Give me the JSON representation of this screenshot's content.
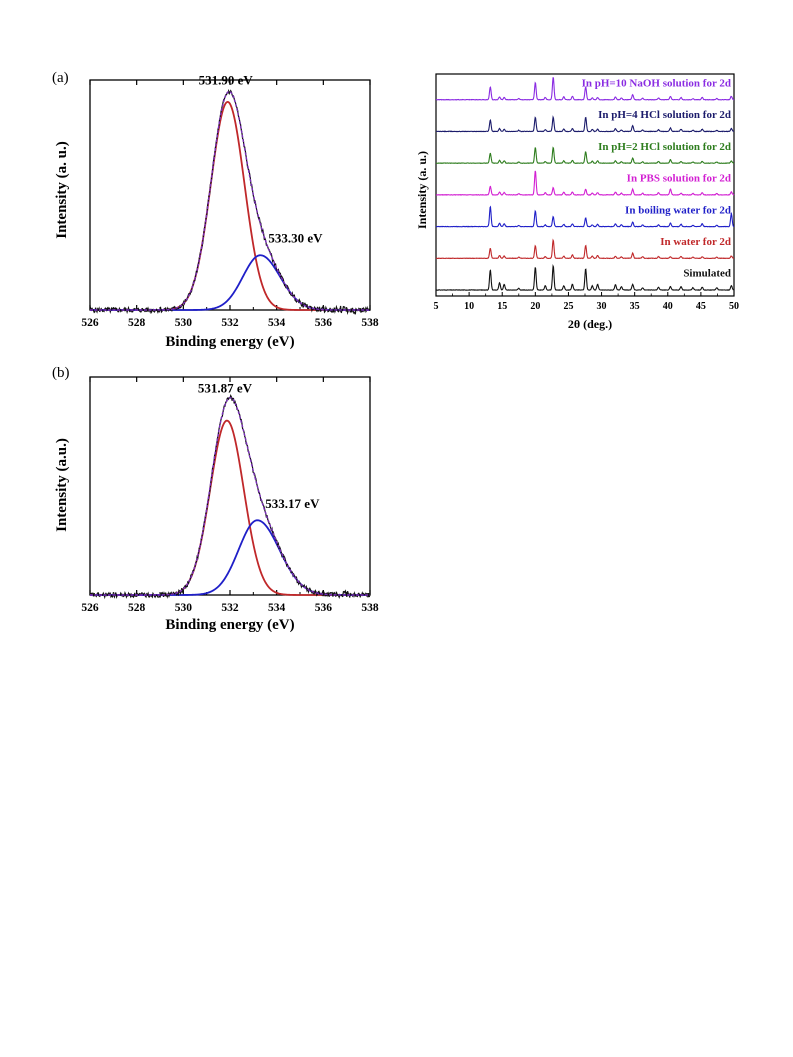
{
  "chart_data": [
    {
      "panel": "(a)",
      "type": "line",
      "xlabel": "Binding energy (eV)",
      "ylabel": "Intensity (a. u.)",
      "xlim": [
        526,
        538
      ],
      "ylim": [
        0,
        1.05
      ],
      "xticks": [
        526,
        528,
        530,
        532,
        534,
        536,
        538
      ],
      "annotations": [
        {
          "text": "531.90 eV",
          "x": 531.9,
          "y": 1.0
        },
        {
          "text": "533.30 eV",
          "x": 533.3,
          "y": 0.25
        }
      ],
      "peaks": [
        {
          "center": 531.9,
          "height": 0.95,
          "sigma_left": 0.72,
          "sigma_right": 0.72,
          "color": "#c0282a"
        },
        {
          "center": 533.3,
          "height": 0.25,
          "sigma_left": 0.75,
          "sigma_right": 0.85,
          "color": "#1f1fc8"
        }
      ],
      "baseline": 0.0,
      "envelope_color": "#7a2fb8",
      "raw_color": "#111111"
    },
    {
      "panel": "(b)",
      "type": "line",
      "xlabel": "Binding energy (eV)",
      "ylabel": "Intensity (a.u.)",
      "xlim": [
        526,
        538
      ],
      "ylim": [
        0,
        1.05
      ],
      "xticks": [
        526,
        528,
        530,
        532,
        534,
        536,
        538
      ],
      "annotations": [
        {
          "text": "531.87 eV",
          "x": 531.87,
          "y": 1.0
        },
        {
          "text": "533.17 eV",
          "x": 533.17,
          "y": 0.37
        }
      ],
      "peaks": [
        {
          "center": 531.87,
          "height": 0.84,
          "sigma_left": 0.72,
          "sigma_right": 0.72,
          "color": "#c0282a"
        },
        {
          "center": 533.17,
          "height": 0.36,
          "sigma_left": 0.8,
          "sigma_right": 0.95,
          "color": "#1f1fc8"
        }
      ],
      "baseline": 0.0,
      "envelope_color": "#7a2fb8",
      "raw_color": "#111111"
    },
    {
      "panel": "xrd",
      "type": "line",
      "xlabel": "2θ (deg.)",
      "ylabel": "Intensity (a. u.)",
      "xlim": [
        5,
        50
      ],
      "xticks": [
        5,
        10,
        15,
        20,
        25,
        30,
        35,
        40,
        45,
        50
      ],
      "peak_positions": [
        13.2,
        14.6,
        15.3,
        17.5,
        20.0,
        21.5,
        22.7,
        24.3,
        25.6,
        27.6,
        28.6,
        29.4,
        32.1,
        33.0,
        34.7,
        36.2,
        38.6,
        40.4,
        42.0,
        43.8,
        45.2,
        47.4,
        49.6
      ],
      "series": [
        {
          "name": "Simulated",
          "color": "#111111",
          "heights": [
            0.7,
            0.25,
            0.2,
            0.06,
            0.8,
            0.15,
            0.85,
            0.15,
            0.2,
            0.75,
            0.15,
            0.2,
            0.18,
            0.12,
            0.2,
            0.08,
            0.1,
            0.12,
            0.12,
            0.08,
            0.1,
            0.08,
            0.15
          ]
        },
        {
          "name": "In water for 2d",
          "color": "#c0282a",
          "heights": [
            0.35,
            0.1,
            0.08,
            0.04,
            0.45,
            0.06,
            0.65,
            0.08,
            0.12,
            0.45,
            0.08,
            0.1,
            0.07,
            0.05,
            0.18,
            0.06,
            0.06,
            0.05,
            0.07,
            0.04,
            0.05,
            0.04,
            0.08
          ]
        },
        {
          "name": "In boiling water for 2d",
          "color": "#1f1fc8",
          "heights": [
            0.7,
            0.12,
            0.1,
            0.04,
            0.55,
            0.06,
            0.35,
            0.08,
            0.1,
            0.3,
            0.06,
            0.08,
            0.1,
            0.06,
            0.16,
            0.06,
            0.06,
            0.12,
            0.08,
            0.05,
            0.1,
            0.05,
            0.45
          ]
        },
        {
          "name": "In PBS solution for 2d",
          "color": "#d21fd2",
          "heights": [
            0.3,
            0.1,
            0.08,
            0.04,
            0.85,
            0.08,
            0.25,
            0.1,
            0.1,
            0.2,
            0.07,
            0.08,
            0.1,
            0.06,
            0.2,
            0.06,
            0.08,
            0.2,
            0.06,
            0.05,
            0.08,
            0.05,
            0.1
          ]
        },
        {
          "name": "In pH=2 HCl solution for 2d",
          "color": "#2e7d1e",
          "heights": [
            0.35,
            0.1,
            0.08,
            0.04,
            0.55,
            0.06,
            0.55,
            0.08,
            0.1,
            0.4,
            0.07,
            0.08,
            0.08,
            0.05,
            0.18,
            0.05,
            0.06,
            0.12,
            0.06,
            0.04,
            0.06,
            0.04,
            0.08
          ]
        },
        {
          "name": "In pH=4 HCl solution for 2d",
          "color": "#1b1b6b",
          "heights": [
            0.4,
            0.1,
            0.08,
            0.04,
            0.5,
            0.06,
            0.5,
            0.08,
            0.1,
            0.5,
            0.07,
            0.08,
            0.1,
            0.05,
            0.2,
            0.05,
            0.06,
            0.12,
            0.08,
            0.04,
            0.08,
            0.04,
            0.1
          ]
        },
        {
          "name": "In pH=10 NaOH solution for 2d",
          "color": "#8a2be2",
          "heights": [
            0.45,
            0.1,
            0.08,
            0.04,
            0.6,
            0.08,
            0.8,
            0.1,
            0.12,
            0.45,
            0.07,
            0.08,
            0.1,
            0.06,
            0.18,
            0.05,
            0.06,
            0.12,
            0.08,
            0.04,
            0.08,
            0.04,
            0.12
          ]
        }
      ]
    }
  ]
}
